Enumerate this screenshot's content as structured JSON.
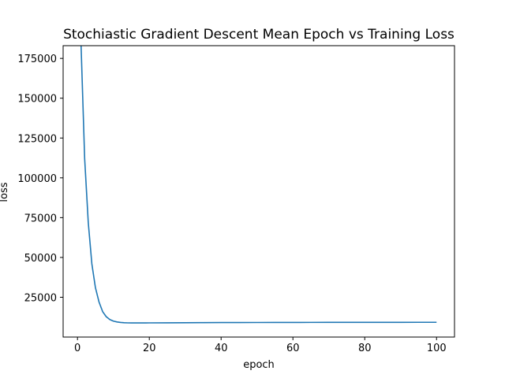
{
  "chart_data": {
    "type": "line",
    "title": "Stochiastic Gradient Descent Mean Epoch vs Training Loss",
    "xlabel": "epoch",
    "ylabel": "loss",
    "xlim": [
      -4.0,
      105.0
    ],
    "ylim": [
      0,
      183000
    ],
    "xticks": [
      0,
      20,
      40,
      60,
      80,
      100
    ],
    "yticks": [
      25000,
      50000,
      75000,
      100000,
      125000,
      150000,
      175000
    ],
    "grid": false,
    "legend": "none",
    "line_color": "#1f77b4",
    "series": [
      {
        "x": [
          1,
          2,
          3,
          4,
          5,
          6,
          7,
          8,
          9,
          10,
          11,
          12,
          13,
          14,
          15,
          16,
          17,
          18,
          19,
          20,
          25,
          30,
          35,
          40,
          45,
          50,
          55,
          60,
          65,
          70,
          75,
          80,
          85,
          90,
          95,
          100
        ],
        "y": [
          183000,
          112000,
          72000,
          46000,
          31000,
          22000,
          16000,
          12800,
          11000,
          10000,
          9500,
          9200,
          9000,
          8900,
          8850,
          8850,
          8850,
          8870,
          8890,
          8900,
          8950,
          9000,
          9050,
          9100,
          9130,
          9150,
          9170,
          9190,
          9210,
          9220,
          9230,
          9240,
          9250,
          9260,
          9270,
          9280
        ]
      }
    ]
  }
}
